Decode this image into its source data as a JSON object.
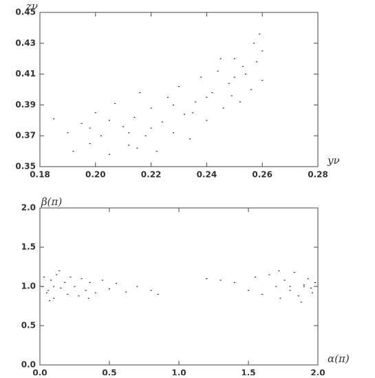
{
  "chart_data": [
    {
      "type": "scatter",
      "xlabel": "yν",
      "ylabel": "zν",
      "color": "#222222",
      "xlim": [
        0.18,
        0.28
      ],
      "ylim": [
        0.35,
        0.45
      ],
      "xticks": [
        0.18,
        {
          "value": 0.2,
          "label": "0.20"
        },
        0.22,
        0.24,
        0.26,
        0.28
      ],
      "yticks": [
        0.35,
        0.37,
        0.39,
        0.41,
        0.43,
        0.45
      ],
      "x": [
        0.185,
        0.19,
        0.192,
        0.195,
        0.198,
        0.2,
        0.202,
        0.205,
        0.207,
        0.21,
        0.212,
        0.214,
        0.216,
        0.218,
        0.22,
        0.222,
        0.224,
        0.226,
        0.228,
        0.23,
        0.232,
        0.234,
        0.236,
        0.238,
        0.24,
        0.242,
        0.244,
        0.246,
        0.248,
        0.25,
        0.252,
        0.254,
        0.256,
        0.258,
        0.26,
        0.26,
        0.257,
        0.253,
        0.249,
        0.245,
        0.24,
        0.235,
        0.228,
        0.22,
        0.212,
        0.205,
        0.198,
        0.215,
        0.25,
        0.259
      ],
      "y": [
        0.381,
        0.372,
        0.36,
        0.378,
        0.365,
        0.385,
        0.37,
        0.358,
        0.391,
        0.376,
        0.364,
        0.382,
        0.398,
        0.37,
        0.388,
        0.36,
        0.379,
        0.395,
        0.372,
        0.402,
        0.384,
        0.368,
        0.392,
        0.408,
        0.38,
        0.398,
        0.412,
        0.388,
        0.404,
        0.42,
        0.392,
        0.41,
        0.4,
        0.418,
        0.425,
        0.406,
        0.43,
        0.415,
        0.396,
        0.42,
        0.395,
        0.385,
        0.39,
        0.375,
        0.372,
        0.38,
        0.375,
        0.362,
        0.408,
        0.436
      ]
    },
    {
      "type": "scatter",
      "xlabel": "α(π)",
      "ylabel": "β(π)",
      "color": "#222222",
      "xlim": [
        0,
        2
      ],
      "ylim": [
        0,
        2
      ],
      "xticks": [
        {
          "value": 0,
          "label": "0.0"
        },
        0.5,
        {
          "value": 1,
          "label": "1.0"
        },
        1.5,
        {
          "value": 2,
          "label": "2.0"
        }
      ],
      "yticks": [
        {
          "value": 0,
          "label": "0.0"
        },
        0.5,
        {
          "value": 1,
          "label": "1.0"
        },
        1.5,
        {
          "value": 2,
          "label": "2.0"
        }
      ],
      "x": [
        0.02,
        0.05,
        0.08,
        0.1,
        0.12,
        0.15,
        0.18,
        0.2,
        0.22,
        0.25,
        0.28,
        0.3,
        0.33,
        0.36,
        0.4,
        0.45,
        0.5,
        0.55,
        0.62,
        0.7,
        0.8,
        0.85,
        1.2,
        1.3,
        1.4,
        1.5,
        1.55,
        1.6,
        1.65,
        1.7,
        1.73,
        1.76,
        1.8,
        1.83,
        1.86,
        1.9,
        1.93,
        1.96,
        1.98,
        0.03,
        0.07,
        1.88,
        1.72,
        0.14,
        1.95,
        0.1,
        1.8,
        0.06,
        1.9,
        0.35
      ],
      "y": [
        1.0,
        0.92,
        1.08,
        0.85,
        1.15,
        0.98,
        1.05,
        0.9,
        1.12,
        1.0,
        0.88,
        1.1,
        0.95,
        1.05,
        0.92,
        1.08,
        0.97,
        1.04,
        0.93,
        1.0,
        0.95,
        0.9,
        1.1,
        1.08,
        1.05,
        0.95,
        1.12,
        0.9,
        1.15,
        1.0,
        0.85,
        1.08,
        0.95,
        1.18,
        0.88,
        1.02,
        1.1,
        0.92,
        1.05,
        1.12,
        0.82,
        0.8,
        1.2,
        1.2,
        0.98,
        1.0,
        1.0,
        0.95,
        1.0,
        0.85
      ]
    }
  ]
}
